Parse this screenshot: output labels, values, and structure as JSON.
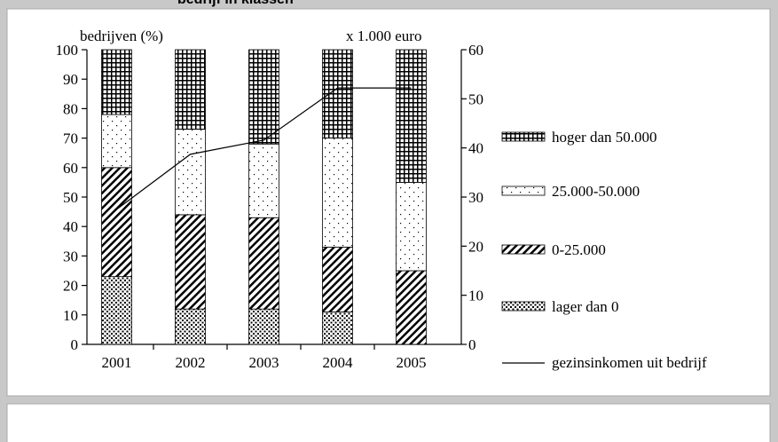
{
  "chart_data": {
    "type": "stacked-bar-line",
    "title": "bedrijf in klassen",
    "y_label": "bedrijven (%)",
    "y2_label": "x 1.000 euro",
    "categories": [
      "2001",
      "2002",
      "2003",
      "2004",
      "2005"
    ],
    "series": [
      {
        "name": "lager dan 0",
        "values": [
          23,
          12,
          12,
          11,
          0
        ]
      },
      {
        "name": "0-25.000",
        "values": [
          37,
          32,
          31,
          22,
          25
        ]
      },
      {
        "name": "25.000-50.000",
        "values": [
          18,
          29,
          25,
          37,
          30
        ]
      },
      {
        "name": "hoger dan 50.000",
        "values": [
          22,
          27,
          32,
          30,
          45
        ]
      },
      {
        "name": "gezinsinkomen uit bedrijf",
        "type": "line",
        "axis": "y2",
        "color": "#000000",
        "values": [
          27.5,
          38.7,
          41.6,
          52.2,
          52.2
        ]
      }
    ],
    "ylim": [
      0,
      100
    ],
    "yticks": [
      0,
      10,
      20,
      30,
      40,
      50,
      60,
      70,
      80,
      90,
      100
    ],
    "y2lim": [
      0,
      60
    ],
    "y2ticks": [
      0,
      10,
      20,
      30,
      40,
      50,
      60
    ]
  }
}
